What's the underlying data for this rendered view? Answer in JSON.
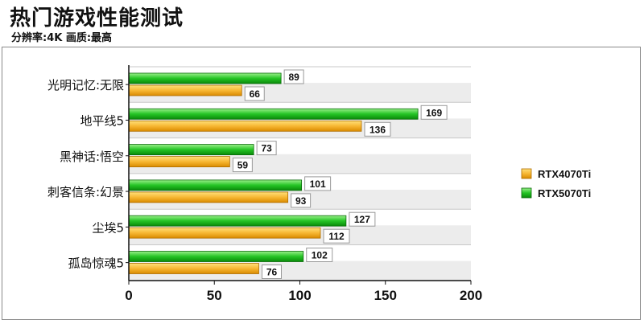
{
  "header": {
    "title": "热门游戏性能测试",
    "subtitle": "分辨率:4K 画质:最高"
  },
  "colors": {
    "rtx4070ti": "#f5a623",
    "rtx5070ti": "#22c022",
    "band": "#ececec"
  },
  "chart_data": {
    "type": "bar",
    "orientation": "horizontal",
    "categories": [
      "光明记忆:无限",
      "地平线5",
      "黑神话:悟空",
      "刺客信条:幻景",
      "尘埃5",
      "孤岛惊魂5"
    ],
    "series": [
      {
        "name": "RTX5070Ti",
        "values": [
          89,
          169,
          73,
          101,
          127,
          102
        ]
      },
      {
        "name": "RTX4070Ti",
        "values": [
          66,
          136,
          59,
          93,
          112,
          76
        ]
      }
    ],
    "xlim": [
      0,
      200
    ],
    "xticks": [
      "0",
      "50",
      "100",
      "150",
      "200"
    ],
    "legend": [
      "RTX4070Ti",
      "RTX5070Ti"
    ],
    "legend_position": "right",
    "grid": false
  }
}
